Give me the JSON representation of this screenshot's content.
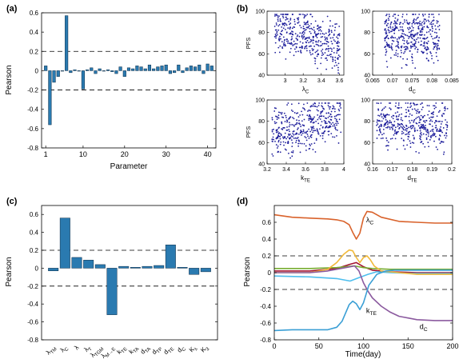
{
  "colors": {
    "bar": "#2a7ab0",
    "scatter": "#1f1f9c",
    "axis": "#000000",
    "line_orange": "#d9622b",
    "line_blue": "#3a9fd5",
    "line_purple": "#8b5a9f",
    "line_yellow": "#f1b93a",
    "line_green": "#77ac30",
    "line_lightblue": "#4dbeee",
    "line_red": "#a2142f"
  },
  "chart_data": [
    {
      "panel": "(a)",
      "type": "bar",
      "ylabel": "Pearson",
      "xlabel": "Parameter",
      "ylim": [
        -0.8,
        0.6
      ],
      "xlim": [
        0,
        42
      ],
      "yticks": [
        "0.6",
        "0.4",
        "0.2",
        "0",
        "-0.2",
        "-0.4",
        "-0.6",
        "-0.8"
      ],
      "ytick_values": [
        0.6,
        0.4,
        0.2,
        0,
        -0.2,
        -0.4,
        -0.6,
        -0.8
      ],
      "xticks": [
        "1",
        "10",
        "20",
        "30",
        "40"
      ],
      "xtick_values": [
        1,
        10,
        20,
        30,
        40
      ],
      "reference_lines": [
        0.2,
        -0.2
      ],
      "x": [
        1,
        2,
        3,
        4,
        5,
        6,
        7,
        8,
        9,
        10,
        11,
        12,
        13,
        14,
        15,
        16,
        17,
        18,
        19,
        20,
        21,
        22,
        23,
        24,
        25,
        26,
        27,
        28,
        29,
        30,
        31,
        32,
        33,
        34,
        35,
        36,
        37,
        38,
        39,
        40,
        41
      ],
      "values": [
        0.05,
        -0.56,
        -0.12,
        -0.06,
        0.0,
        0.57,
        -0.02,
        0.01,
        0.0,
        -0.19,
        0.01,
        0.03,
        -0.03,
        0.02,
        0.0,
        0.01,
        -0.01,
        -0.03,
        0.04,
        -0.06,
        0.03,
        0.02,
        0.05,
        0.04,
        0.02,
        0.06,
        0.02,
        0.04,
        0.05,
        0.06,
        -0.03,
        -0.02,
        0.06,
        -0.02,
        0.03,
        0.05,
        0.04,
        0.06,
        -0.03,
        0.07,
        0.05
      ]
    },
    {
      "panel": "(b)",
      "type": "scatter",
      "plots": [
        {
          "xlabel": "λC",
          "ylabel": "PFS",
          "xlim": [
            2.8,
            3.65
          ],
          "ylim": [
            40,
            100
          ],
          "xticks": [
            "3",
            "3.2",
            "3.4",
            "3.6"
          ],
          "xtick_values": [
            3,
            3.2,
            3.4,
            3.6
          ],
          "yticks": [
            "100",
            "80",
            "60",
            "40"
          ],
          "ytick_values": [
            100,
            80,
            60,
            40
          ],
          "trend": [
            88,
            67
          ],
          "spread": 24
        },
        {
          "xlabel": "dC",
          "ylabel": "",
          "xlim": [
            0.065,
            0.085
          ],
          "ylim": [
            40,
            100
          ],
          "xticks": [
            "0.065",
            "0.07",
            "0.075",
            "0.08",
            "0.085"
          ],
          "xtick_values": [
            0.065,
            0.07,
            0.075,
            0.08,
            0.085
          ],
          "yticks": [
            "100",
            "80",
            "60",
            "40"
          ],
          "ytick_values": [
            100,
            80,
            60,
            40
          ],
          "xrange": [
            0.068,
            0.082
          ],
          "trend": [
            76,
            77
          ],
          "spread": 26
        },
        {
          "xlabel": "kTE",
          "ylabel": "PFS",
          "xlim": [
            3.2,
            4.0
          ],
          "ylim": [
            40,
            100
          ],
          "xticks": [
            "3.2",
            "3.4",
            "3.6",
            "3.8",
            "4"
          ],
          "xtick_values": [
            3.2,
            3.4,
            3.6,
            3.8,
            4
          ],
          "yticks": [
            "100",
            "80",
            "60",
            "40"
          ],
          "ytick_values": [
            100,
            80,
            60,
            40
          ],
          "xrange": [
            3.25,
            3.97
          ],
          "trend": [
            68,
            85
          ],
          "spread": 24
        },
        {
          "xlabel": "dTE",
          "ylabel": "",
          "xlim": [
            0.16,
            0.2
          ],
          "ylim": [
            40,
            100
          ],
          "xticks": [
            "0.16",
            "0.17",
            "0.18",
            "0.19",
            "0.2"
          ],
          "xtick_values": [
            0.16,
            0.17,
            0.18,
            0.19,
            0.2
          ],
          "yticks": [
            "100",
            "80",
            "60",
            "40"
          ],
          "ytick_values": [
            100,
            80,
            60,
            40
          ],
          "xrange": [
            0.162,
            0.198
          ],
          "trend": [
            80,
            74
          ],
          "spread": 24
        }
      ]
    },
    {
      "panel": "(c)",
      "type": "bar",
      "ylabel": "Pearson",
      "ylim": [
        -0.8,
        0.7
      ],
      "yticks": [
        "0.6",
        "0.4",
        "0.2",
        "0",
        "-0.2",
        "-0.4",
        "-0.6",
        "-0.8"
      ],
      "ytick_values": [
        0.6,
        0.4,
        0.2,
        0,
        -0.2,
        -0.4,
        -0.6,
        -0.8
      ],
      "reference_lines": [
        0.2,
        -0.2
      ],
      "categories": [
        "λTM",
        "λC",
        "λ",
        "λT",
        "λTGM",
        "λM→E",
        "kTE",
        "kTA",
        "dTA",
        "dTP",
        "dTE",
        "dC",
        "Kλ",
        "K3"
      ],
      "tick_labels": [
        {
          "main": "λ",
          "sub": "TM"
        },
        {
          "main": "λ",
          "sub": "C"
        },
        {
          "main": "λ",
          "sub": ""
        },
        {
          "main": "λ",
          "sub": "T"
        },
        {
          "main": "λ",
          "sub": "TGM"
        },
        {
          "main": "λ",
          "sub": "M→E"
        },
        {
          "main": "k",
          "sub": "TE"
        },
        {
          "main": "k",
          "sub": "TA"
        },
        {
          "main": "d",
          "sub": "TA"
        },
        {
          "main": "d",
          "sub": "TP"
        },
        {
          "main": "d",
          "sub": "TE"
        },
        {
          "main": "d",
          "sub": "C"
        },
        {
          "main": "K",
          "sub": "λ"
        },
        {
          "main": "K",
          "sub": "3"
        }
      ],
      "values": [
        -0.03,
        0.56,
        0.12,
        0.09,
        0.04,
        -0.52,
        0.02,
        0.01,
        0.02,
        0.03,
        0.26,
        0.01,
        -0.07,
        -0.04
      ]
    },
    {
      "panel": "(d)",
      "type": "line",
      "xlabel": "Time(day)",
      "ylabel": "Pearson",
      "xlim": [
        0,
        200
      ],
      "ylim": [
        -0.8,
        0.8
      ],
      "xticks": [
        "0",
        "50",
        "100",
        "150",
        "200"
      ],
      "xtick_values": [
        0,
        50,
        100,
        150,
        200
      ],
      "yticks": [
        "0.6",
        "0.4",
        "0.2",
        "0",
        "-0.2",
        "-0.4",
        "-0.6",
        "-0.8"
      ],
      "ytick_values": [
        0.6,
        0.4,
        0.2,
        0,
        -0.2,
        -0.4,
        -0.6,
        -0.8
      ],
      "reference_lines": [
        0.2,
        -0.2
      ],
      "annotations": [
        {
          "main": "λ",
          "sub": "C",
          "x": 103,
          "y": 0.6
        },
        {
          "main": "k",
          "sub": "TE",
          "x": 103,
          "y": -0.48
        },
        {
          "main": "d",
          "sub": "C",
          "x": 163,
          "y": -0.67
        }
      ],
      "series": [
        {
          "color_key": "line_orange",
          "x": [
            0,
            20,
            40,
            60,
            70,
            78,
            84,
            88,
            92,
            96,
            100,
            104,
            110,
            120,
            140,
            160,
            180,
            200
          ],
          "y": [
            0.69,
            0.66,
            0.65,
            0.64,
            0.63,
            0.61,
            0.57,
            0.48,
            0.4,
            0.47,
            0.65,
            0.73,
            0.72,
            0.66,
            0.61,
            0.6,
            0.59,
            0.59
          ]
        },
        {
          "color_key": "line_blue",
          "x": [
            0,
            20,
            40,
            60,
            70,
            76,
            80,
            84,
            88,
            92,
            96,
            100,
            106,
            115,
            125,
            135,
            145,
            160,
            180,
            200
          ],
          "y": [
            -0.69,
            -0.68,
            -0.68,
            -0.68,
            -0.65,
            -0.58,
            -0.48,
            -0.38,
            -0.34,
            -0.37,
            -0.44,
            -0.36,
            -0.15,
            -0.02,
            0.02,
            0.03,
            0.03,
            0.03,
            0.03,
            0.03
          ]
        },
        {
          "color_key": "line_purple",
          "x": [
            0,
            40,
            60,
            80,
            90,
            95,
            100,
            105,
            110,
            120,
            130,
            140,
            150,
            160,
            180,
            200
          ],
          "y": [
            0.0,
            0.0,
            0.02,
            0.06,
            0.08,
            0.02,
            -0.12,
            -0.22,
            -0.3,
            -0.4,
            -0.47,
            -0.52,
            -0.54,
            -0.56,
            -0.57,
            -0.57
          ]
        },
        {
          "color_key": "line_yellow",
          "x": [
            0,
            40,
            60,
            70,
            78,
            84,
            88,
            92,
            96,
            100,
            104,
            108,
            112,
            120,
            140,
            160,
            180,
            200
          ],
          "y": [
            0.0,
            0.0,
            0.04,
            0.12,
            0.22,
            0.27,
            0.26,
            0.18,
            0.12,
            0.18,
            0.2,
            0.15,
            0.08,
            0.02,
            0.0,
            -0.02,
            -0.02,
            -0.02
          ]
        },
        {
          "color_key": "line_green",
          "x": [
            0,
            40,
            70,
            90,
            100,
            110,
            130,
            160,
            200
          ],
          "y": [
            0.05,
            0.05,
            0.06,
            0.08,
            0.06,
            0.05,
            0.04,
            0.04,
            0.04
          ]
        },
        {
          "color_key": "line_lightblue",
          "x": [
            0,
            40,
            70,
            85,
            95,
            105,
            115,
            130,
            160,
            200
          ],
          "y": [
            -0.04,
            -0.05,
            -0.07,
            -0.1,
            -0.06,
            -0.02,
            0.01,
            0.0,
            -0.01,
            -0.01
          ]
        },
        {
          "color_key": "line_red",
          "x": [
            0,
            40,
            70,
            85,
            92,
            100,
            110,
            130,
            160,
            200
          ],
          "y": [
            0.02,
            0.02,
            0.05,
            0.1,
            0.12,
            0.07,
            0.03,
            0.01,
            0.0,
            0.0
          ]
        }
      ]
    }
  ]
}
